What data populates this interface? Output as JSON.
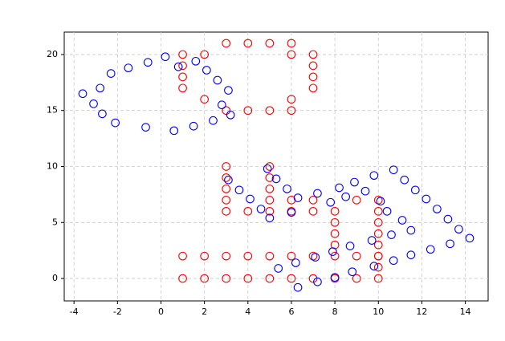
{
  "chart_data": {
    "type": "scatter",
    "xlim": [
      -4.45,
      15.05
    ],
    "ylim": [
      -2.0,
      22.0
    ],
    "xticks": [
      -4,
      -2,
      0,
      2,
      4,
      6,
      8,
      10,
      12,
      14
    ],
    "yticks": [
      0,
      5,
      10,
      15,
      20
    ],
    "grid": true,
    "series": [
      {
        "color": "#ff0000",
        "x": [
          1,
          1,
          1,
          1,
          2,
          2,
          3,
          3,
          4,
          4,
          5,
          5,
          6,
          6,
          6,
          6,
          7,
          7,
          7,
          7,
          1,
          1,
          2,
          2,
          3,
          3,
          4,
          4,
          5,
          5,
          6,
          6,
          7,
          7,
          8,
          8,
          9,
          9,
          10,
          10,
          10,
          3,
          3,
          3,
          3,
          3,
          4,
          5,
          5,
          5,
          5,
          5,
          6,
          6,
          7,
          7,
          8,
          8,
          8,
          8,
          9,
          10,
          10,
          10,
          10,
          10,
          10
        ],
        "values": [
          20,
          19,
          18,
          17,
          20,
          16,
          21,
          15,
          21,
          15,
          21,
          15,
          21,
          20,
          16,
          15,
          20,
          19,
          18,
          17,
          2,
          0,
          2,
          0,
          2,
          0,
          2,
          0,
          2,
          0,
          2,
          0,
          2,
          0,
          2,
          0,
          2,
          0,
          2,
          0,
          1,
          10,
          9,
          8,
          7,
          6,
          6,
          10,
          9,
          8,
          7,
          6,
          7,
          6,
          7,
          6,
          6,
          5,
          4,
          3,
          7,
          7,
          6,
          5,
          4,
          3,
          2
        ]
      },
      {
        "color": "#0000ff",
        "x": [
          -3.6,
          -3.1,
          -2.7,
          -2.1,
          -0.7,
          0.6,
          1.5,
          2.4,
          3.2,
          3.1,
          2.6,
          2.1,
          1.6,
          0.8,
          0.2,
          -0.6,
          -1.5,
          -2.3,
          -2.8,
          2.8,
          3.1,
          3.6,
          4.1,
          4.6,
          5.0,
          4.9,
          5.3,
          5.8,
          6.3,
          6.0,
          7.2,
          7.8,
          8.2,
          8.5,
          8.9,
          9.4,
          9.8,
          10.1,
          10.4,
          10.7,
          11.1,
          11.2,
          11.5,
          11.7,
          12.2,
          12.7,
          13.2,
          13.7,
          14.2,
          13.3,
          12.4,
          11.5,
          10.7,
          9.8,
          8.8,
          8.0,
          7.2,
          6.3,
          5.4,
          6.2,
          7.1,
          7.9,
          8.7,
          9.7,
          10.6
        ],
        "values": [
          16.5,
          15.6,
          14.7,
          13.9,
          13.5,
          13.2,
          13.6,
          14.1,
          14.6,
          16.8,
          17.7,
          18.6,
          19.4,
          18.9,
          19.8,
          19.3,
          18.8,
          18.3,
          17.0,
          15.5,
          8.8,
          7.9,
          7.1,
          6.2,
          5.4,
          9.8,
          8.9,
          8.0,
          7.2,
          5.9,
          7.6,
          6.8,
          8.1,
          7.3,
          8.6,
          7.8,
          9.2,
          6.9,
          6.0,
          9.7,
          5.2,
          8.8,
          4.3,
          7.9,
          7.1,
          6.2,
          5.3,
          4.4,
          3.6,
          3.1,
          2.6,
          2.1,
          1.6,
          1.1,
          0.6,
          0.1,
          -0.3,
          -0.8,
          0.9,
          1.4,
          1.9,
          2.4,
          2.9,
          3.4,
          3.9
        ]
      }
    ]
  }
}
